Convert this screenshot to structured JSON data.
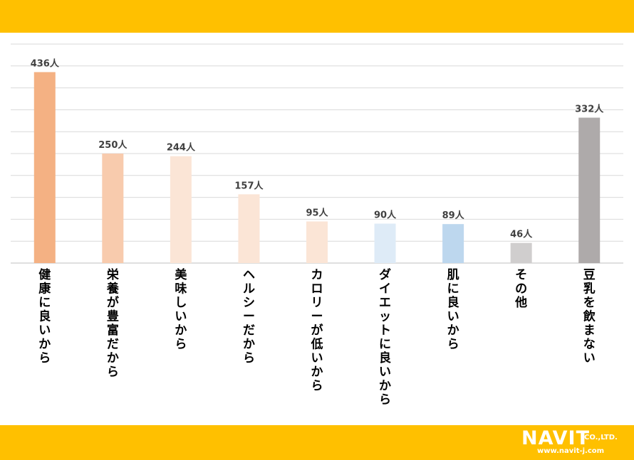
{
  "chart_data": {
    "type": "bar",
    "categories": [
      "健康に良いから",
      "栄養が豊富だから",
      "美味しいから",
      "ヘルシーだから",
      "カロリーが低いから",
      "ダイエットに良いから",
      "肌に良いから",
      "その他",
      "豆乳を飲まない"
    ],
    "values": [
      436,
      250,
      244,
      157,
      95,
      90,
      89,
      46,
      332
    ],
    "value_labels": [
      "436人",
      "250人",
      "244人",
      "157人",
      "95人",
      "90人",
      "89人",
      "46人",
      "332人"
    ],
    "unit": "人",
    "ylim": [
      0,
      500
    ],
    "grid": true,
    "legend": "none",
    "colors": [
      "#F4B183",
      "#F8CBAD",
      "#FBE5D6",
      "#FBE5D6",
      "#FBE5D6",
      "#DEEBF7",
      "#BDD7EE",
      "#D0CECE",
      "#AEAAAA"
    ]
  },
  "branding": {
    "logo_main": "NAVIT",
    "logo_suffix": "CO.,LTD.",
    "url": "www.navit-j.com"
  },
  "colors": {
    "band": "#FFC000",
    "grid": "#D9D9D9",
    "axis": "#BFBFBF"
  }
}
